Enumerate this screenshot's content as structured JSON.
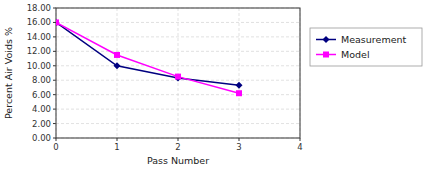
{
  "chart_data": {
    "type": "line",
    "x": [
      0,
      1,
      2,
      3
    ],
    "series": [
      {
        "name": "Measurement",
        "color": "#000080",
        "marker": "diamond",
        "values": [
          16.0,
          10.0,
          8.3,
          7.3
        ]
      },
      {
        "name": "Model",
        "color": "#FF00FF",
        "marker": "square",
        "values": [
          16.0,
          11.5,
          8.5,
          6.2
        ]
      }
    ],
    "xlabel": "Pass Number",
    "ylabel": "Percent Air Voids %",
    "xlim": [
      0,
      4
    ],
    "ylim": [
      0.0,
      18.0
    ],
    "xticks": [
      0,
      1,
      2,
      3,
      4
    ],
    "yticks": [
      {
        "value": 0.0,
        "label": "0.00"
      },
      {
        "value": 2.0,
        "label": "2.00"
      },
      {
        "value": 4.0,
        "label": "4.00"
      },
      {
        "value": 6.0,
        "label": "6.00"
      },
      {
        "value": 8.0,
        "label": "8.00"
      },
      {
        "value": 10.0,
        "label": "10.00"
      },
      {
        "value": 12.0,
        "label": "12.00"
      },
      {
        "value": 14.0,
        "label": "14.00"
      },
      {
        "value": 16.0,
        "label": "16.00"
      },
      {
        "value": 18.0,
        "label": "18.00"
      }
    ],
    "grid": true,
    "legend": "right"
  }
}
